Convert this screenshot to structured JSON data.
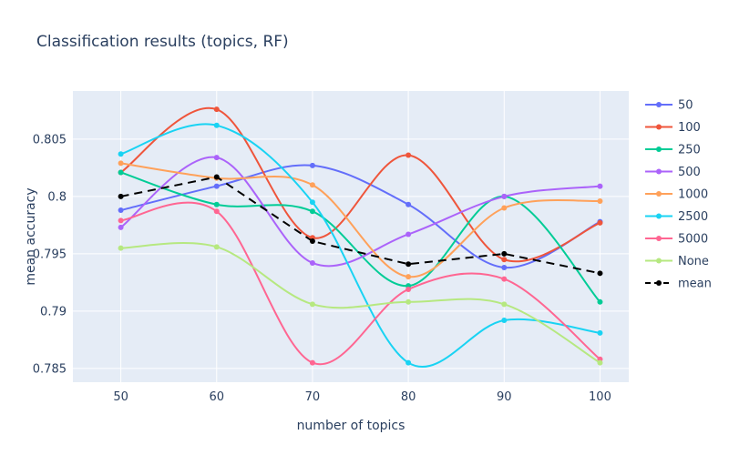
{
  "chart_data": {
    "type": "line",
    "title": "Classification results (topics, RF)",
    "xlabel": "number of topics",
    "ylabel": "mean accuracy",
    "x": [
      50,
      60,
      70,
      80,
      90,
      100
    ],
    "xticks": [
      50,
      60,
      70,
      80,
      90,
      100
    ],
    "yticks": [
      0.785,
      0.79,
      0.795,
      0.8,
      0.805
    ],
    "ytick_labels": [
      "0.785",
      "0.79",
      "0.795",
      "0.8",
      "0.805"
    ],
    "xlim": [
      45,
      103
    ],
    "ylim": [
      0.7838,
      0.8092
    ],
    "grid": true,
    "legend_position": "right",
    "background": "#e5ecf6",
    "series": [
      {
        "name": "50",
        "color": "#636efa",
        "dash": false,
        "values": [
          0.7988,
          0.8009,
          0.8027,
          0.7993,
          0.7938,
          0.7978
        ]
      },
      {
        "name": "100",
        "color": "#ef553b",
        "dash": false,
        "values": [
          0.8021,
          0.8076,
          0.7964,
          0.8036,
          0.7945,
          0.7977
        ]
      },
      {
        "name": "250",
        "color": "#00cc96",
        "dash": false,
        "values": [
          0.8021,
          0.7993,
          0.7987,
          0.7922,
          0.8,
          0.7908
        ]
      },
      {
        "name": "500",
        "color": "#ab63fa",
        "dash": false,
        "values": [
          0.7973,
          0.8034,
          0.7942,
          0.7967,
          0.8,
          0.8009
        ]
      },
      {
        "name": "1000",
        "color": "#ffa15a",
        "dash": false,
        "values": [
          0.8029,
          0.8016,
          0.801,
          0.793,
          0.799,
          0.7996
        ]
      },
      {
        "name": "2500",
        "color": "#19d3f3",
        "dash": false,
        "values": [
          0.8037,
          0.8062,
          0.7995,
          0.7855,
          0.7892,
          0.7881
        ]
      },
      {
        "name": "5000",
        "color": "#ff6692",
        "dash": false,
        "values": [
          0.7979,
          0.7987,
          0.7855,
          0.7919,
          0.7928,
          0.7858
        ]
      },
      {
        "name": "None",
        "color": "#b6e880",
        "dash": false,
        "values": [
          0.7955,
          0.7956,
          0.7906,
          0.7908,
          0.7906,
          0.7855
        ]
      },
      {
        "name": "mean",
        "color": "#000000",
        "dash": true,
        "values": [
          0.8,
          0.8017,
          0.7961,
          0.7941,
          0.795,
          0.7933
        ]
      }
    ]
  }
}
